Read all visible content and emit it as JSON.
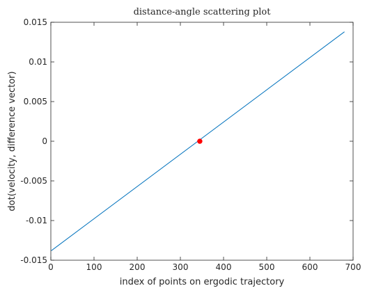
{
  "chart_data": {
    "type": "scatter",
    "title": "distance-angle scattering plot",
    "xlabel": "index of points on ergodic trajectory",
    "ylabel": "dot(velocity, difference vector)",
    "xlim": [
      0,
      700
    ],
    "ylim": [
      -0.015,
      0.015
    ],
    "x_ticks": [
      0,
      100,
      200,
      300,
      400,
      500,
      600,
      700
    ],
    "y_ticks": [
      -0.015,
      -0.01,
      -0.005,
      0,
      0.005,
      0.01,
      0.015
    ],
    "x_tick_labels": [
      "0",
      "100",
      "200",
      "300",
      "400",
      "500",
      "600",
      "700"
    ],
    "y_tick_labels": [
      "-0.015",
      "-0.01",
      "-0.005",
      "0",
      "0.005",
      "0.01",
      "0.015"
    ],
    "grid": false,
    "box": true,
    "series": [
      {
        "x_start": 1,
        "x_end": 680,
        "y_start": -0.0138,
        "y_end": 0.0138,
        "color": "#0072BD"
      },
      {
        "x": [
          345
        ],
        "y": [
          0
        ],
        "color": "#FF0000",
        "marker": "filled-circle"
      }
    ]
  }
}
